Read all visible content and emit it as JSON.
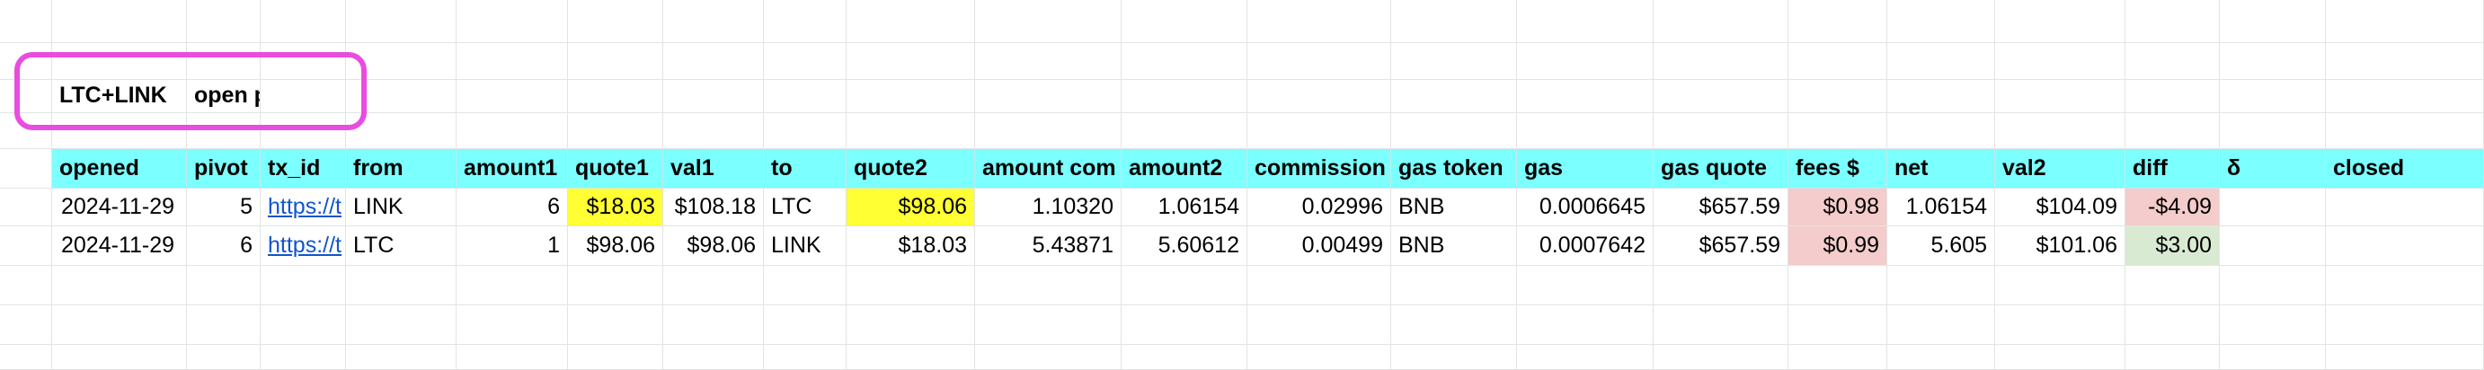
{
  "label_row": {
    "pair": "LTC+LINK",
    "title": "open pivots"
  },
  "colors": {
    "header_bg": "#7bffff",
    "highlight_yellow": "#ffff33",
    "fees_red": "#f3cccb",
    "diff_green": "#d9ead3",
    "diff_red": "#f3cccb",
    "annotation_box": "#e84ddf",
    "link": "#1155cc"
  },
  "table": {
    "columns": [
      "opened",
      "pivot",
      "tx_id",
      "from",
      "amount1",
      "quote1",
      "val1",
      "to",
      "quote2",
      "amount com",
      "amount2",
      "commission",
      "gas token",
      "gas",
      "gas quote",
      "fees $",
      "net",
      "val2",
      "diff",
      "δ",
      "closed"
    ],
    "rows": [
      [
        "2024-11-29",
        "5",
        "https://t",
        "LINK",
        "6",
        "$18.03",
        "$108.18",
        "LTC",
        "$98.06",
        "1.10320",
        "1.06154",
        "0.02996",
        "BNB",
        "0.0006645",
        "$657.59",
        "$0.98",
        "1.06154",
        "$104.09",
        "-$4.09",
        "",
        ""
      ],
      [
        "2024-11-29",
        "6",
        "https://t",
        "LTC",
        "1",
        "$98.06",
        "$98.06",
        "LINK",
        "$18.03",
        "5.43871",
        "5.60612",
        "0.00499",
        "BNB",
        "0.0007642",
        "$657.59",
        "$0.99",
        "5.605",
        "$101.06",
        "$3.00",
        "",
        ""
      ]
    ]
  }
}
